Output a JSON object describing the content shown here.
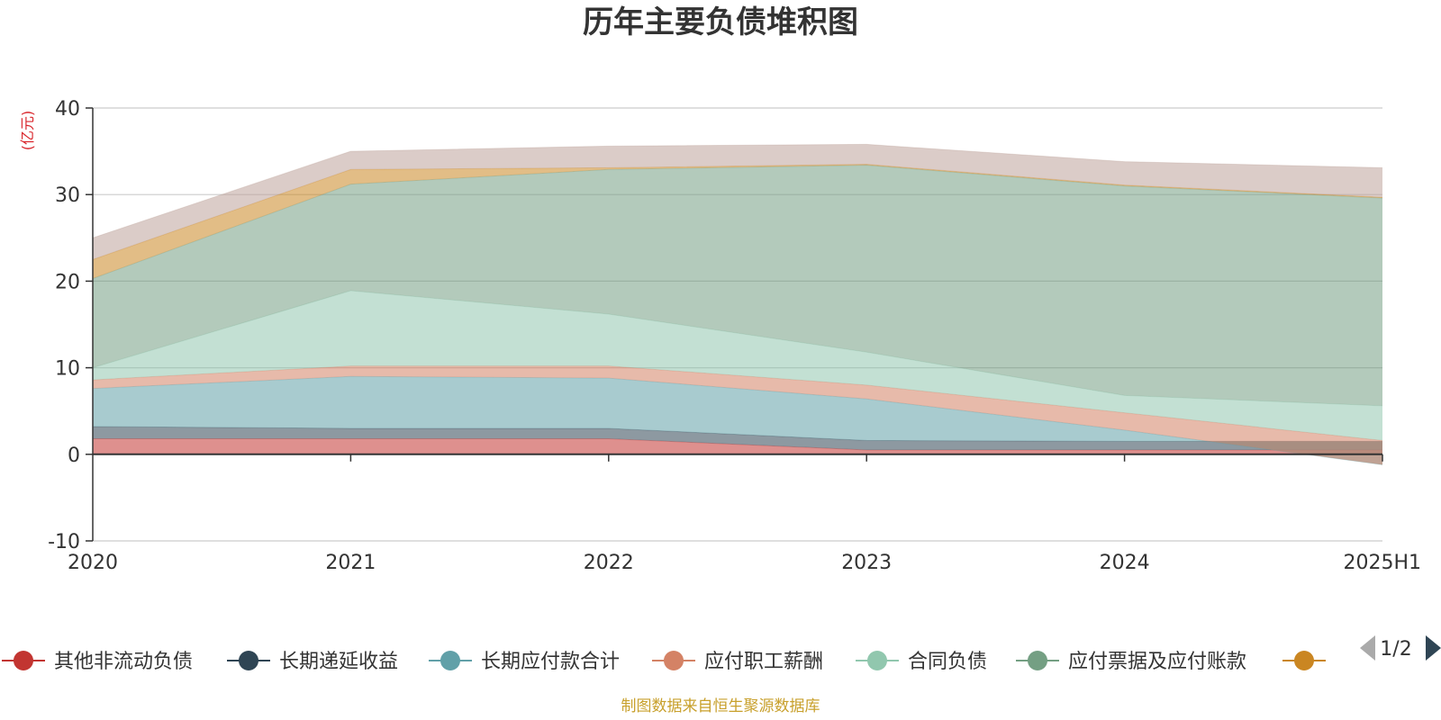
{
  "chart_data": {
    "type": "area",
    "stacked": true,
    "title": "历年主要负债堆积图",
    "unit_label": "(亿元)",
    "categories": [
      "2020",
      "2021",
      "2022",
      "2023",
      "2024",
      "2025H1"
    ],
    "ylim": [
      -10,
      40
    ],
    "yticks": [
      -10,
      0,
      10,
      20,
      30,
      40
    ],
    "grid": true,
    "legend_position": "bottom",
    "legend_page": "1/2",
    "source_note": "制图数据来自恒生聚源数据库",
    "series": [
      {
        "name": "其他非流动负债",
        "color": "#c23531",
        "values": [
          1.8,
          1.8,
          1.8,
          0.5,
          0.5,
          0.5
        ]
      },
      {
        "name": "长期递延收益",
        "color": "#2f4554",
        "values": [
          1.4,
          1.2,
          1.2,
          1.1,
          1.0,
          1.0
        ]
      },
      {
        "name": "长期应付款合计",
        "color": "#61a0a8",
        "values": [
          4.4,
          6.0,
          5.8,
          4.8,
          1.3,
          -2.7
        ]
      },
      {
        "name": "应付职工薪酬",
        "color": "#d48265",
        "values": [
          1.0,
          1.2,
          1.4,
          1.6,
          2.0,
          2.8
        ]
      },
      {
        "name": "合同负债",
        "color": "#91c7ae",
        "values": [
          1.4,
          8.7,
          6.0,
          3.8,
          2.0,
          4.0
        ]
      },
      {
        "name": "应付票据及应付账款",
        "color": "#749f83",
        "values": [
          10.3,
          12.3,
          16.7,
          21.6,
          24.2,
          24.0
        ]
      },
      {
        "name": "",
        "color": "#ca8622",
        "values": [
          2.2,
          1.7,
          0.2,
          0.1,
          0.1,
          0.1
        ]
      },
      {
        "name": "",
        "color": "#bda29a",
        "values": [
          2.5,
          2.1,
          2.5,
          2.3,
          2.7,
          3.4
        ]
      }
    ]
  },
  "ui": {
    "legend_visible_count": 7
  }
}
